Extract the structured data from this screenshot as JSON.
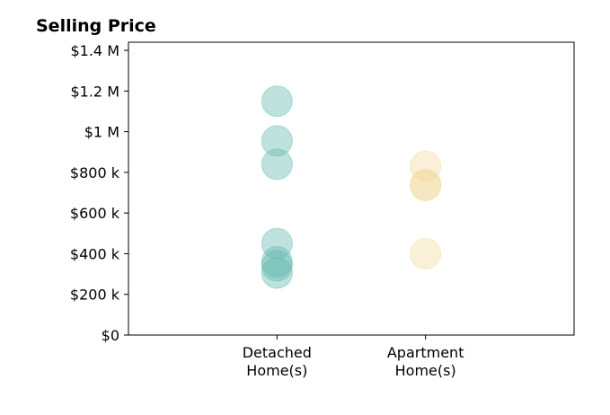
{
  "chart_data": {
    "type": "scatter",
    "title": "Selling Price",
    "xlabel": "",
    "ylabel": "",
    "categories": [
      [
        "Detached",
        "Home(s)"
      ],
      [
        "Apartment",
        "Home(s)"
      ]
    ],
    "x_range": [
      -1,
      2
    ],
    "ylim": [
      0,
      1440000
    ],
    "y_ticks": [
      0,
      200000,
      400000,
      600000,
      800000,
      1000000,
      1200000,
      1400000
    ],
    "y_tick_labels": [
      "$0",
      "$200 k",
      "$400 k",
      "$600 k",
      "$800 k",
      "$1 M",
      "$1.2 M",
      "$1.4 M"
    ],
    "grid": false,
    "series": [
      {
        "category_index": 0,
        "color": "#5fb7ad",
        "values": [
          1150000,
          955000,
          840000,
          450000,
          360000,
          340000,
          305000
        ]
      },
      {
        "category_index": 1,
        "color": "#f0d99a",
        "values": [
          830000,
          740000,
          735000,
          400000
        ]
      }
    ]
  }
}
